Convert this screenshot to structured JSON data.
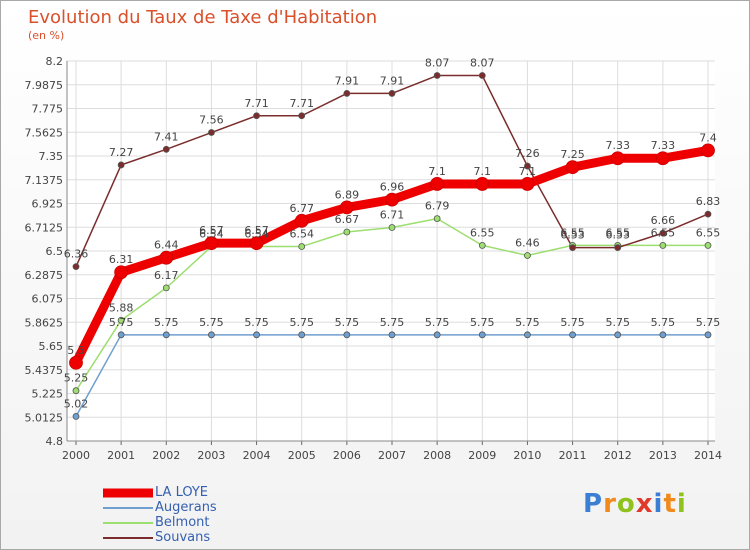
{
  "chart_data": {
    "type": "line",
    "title": "Evolution du Taux de Taxe d'Habitation",
    "subtitle": "(en %)",
    "x": [
      "2000",
      "2001",
      "2002",
      "2003",
      "2004",
      "2005",
      "2006",
      "2007",
      "2008",
      "2009",
      "2010",
      "2011",
      "2012",
      "2013",
      "2014"
    ],
    "y_ticks": [
      "4.8",
      "5.0125",
      "5.225",
      "5.4375",
      "5.65",
      "5.8625",
      "6.075",
      "6.2875",
      "6.5",
      "6.7125",
      "6.925",
      "7.1375",
      "7.35",
      "7.5625",
      "7.775",
      "7.9875",
      "8.2"
    ],
    "ylim": [
      4.8,
      8.2
    ],
    "grid": true,
    "series": [
      {
        "name": "LA LOYE",
        "color": "#ee0000",
        "width": 9,
        "values": [
          5.5,
          6.31,
          6.44,
          6.57,
          6.57,
          6.77,
          6.89,
          6.96,
          7.1,
          7.1,
          7.1,
          7.25,
          7.33,
          7.33,
          7.4
        ],
        "labels": [
          "5.5",
          "6.31",
          "6.44",
          "6.57",
          "6.57",
          "6.77",
          "6.89",
          "6.96",
          "7.1",
          "7.1",
          "7.1",
          "7.25",
          "7.33",
          "7.33",
          "7.4"
        ]
      },
      {
        "name": "Augerans",
        "color": "#6f9fcf",
        "width": 1.5,
        "values": [
          5.02,
          5.75,
          5.75,
          5.75,
          5.75,
          5.75,
          5.75,
          5.75,
          5.75,
          5.75,
          5.75,
          5.75,
          5.75,
          5.75,
          5.75
        ],
        "labels": [
          "5.02",
          "5.75",
          "5.75",
          "5.75",
          "5.75",
          "5.75",
          "5.75",
          "5.75",
          "5.75",
          "5.75",
          "5.75",
          "5.75",
          "5.75",
          "5.75",
          "5.75"
        ]
      },
      {
        "name": "Belmont",
        "color": "#9cde6f",
        "width": 1.5,
        "values": [
          5.25,
          5.88,
          6.17,
          6.54,
          6.54,
          6.54,
          6.67,
          6.71,
          6.79,
          6.55,
          6.46,
          6.55,
          6.55,
          6.55,
          6.55
        ],
        "labels": [
          "5.25",
          "5.88",
          "6.17",
          "6.54",
          "6.54",
          "6.54",
          "6.67",
          "6.71",
          "6.79",
          "6.55",
          "6.46",
          "6.55",
          "6.55",
          "6.55",
          "6.55"
        ]
      },
      {
        "name": "Souvans",
        "color": "#7b2c2c",
        "width": 1.5,
        "values": [
          6.36,
          7.27,
          7.41,
          7.56,
          7.71,
          7.71,
          7.91,
          7.91,
          8.07,
          8.07,
          7.26,
          6.53,
          6.53,
          6.66,
          6.83
        ],
        "labels": [
          "6.36",
          "7.27",
          "7.41",
          "7.56",
          "7.71",
          "7.71",
          "7.91",
          "7.91",
          "8.07",
          "8.07",
          "7.26",
          "6.53",
          "6.53",
          "6.66",
          "6.83"
        ]
      }
    ]
  },
  "brand": {
    "letters": [
      "P",
      "r",
      "o",
      "x",
      "i",
      "t",
      "i"
    ],
    "colors": [
      "#3a7fd4",
      "#f08a1c",
      "#8fc21c",
      "#e23a2a",
      "#3a7fd4",
      "#f08a1c",
      "#8fc21c"
    ]
  }
}
